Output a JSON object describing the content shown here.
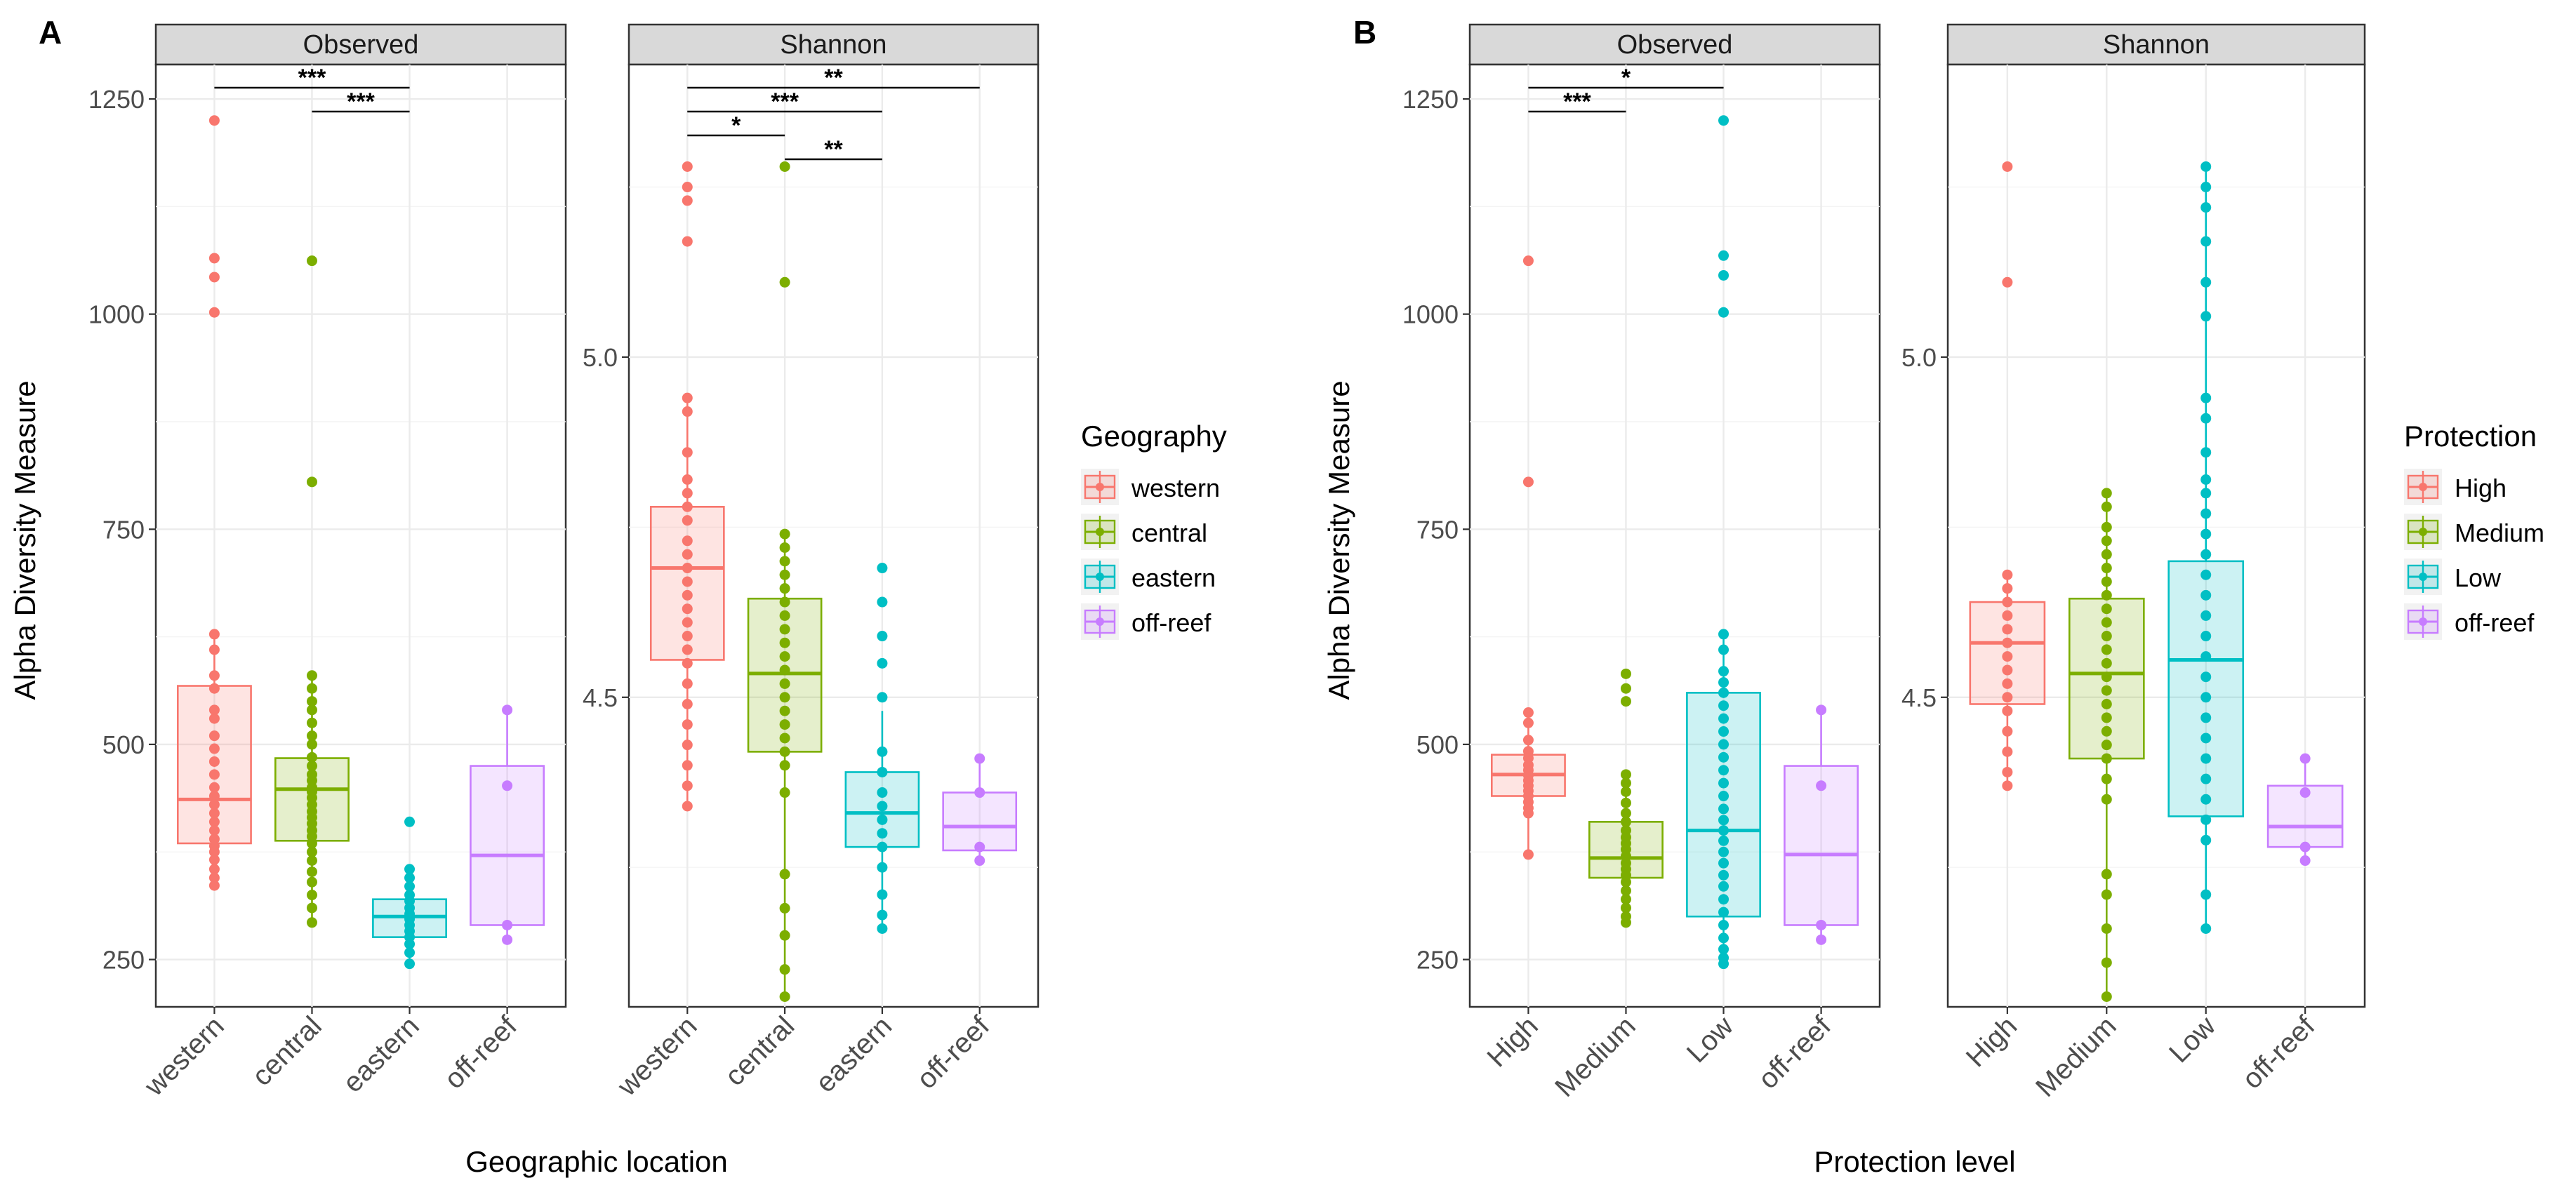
{
  "chart_data": [
    {
      "type": "box",
      "panel_label": "A",
      "xlabel": "Geographic location",
      "ylabel": "Alpha Diversity Measure",
      "legend": {
        "title": "Geography",
        "entries": [
          "western",
          "central",
          "eastern",
          "off-reef"
        ],
        "position": "right"
      },
      "colors": [
        "#f8766d",
        "#7cae00",
        "#00bfc4",
        "#c77cff"
      ],
      "categories": [
        "western",
        "central",
        "eastern",
        "off-reef"
      ],
      "facets": [
        {
          "strip": "Observed",
          "ylim": [
            195,
            1290
          ],
          "yticks": [
            250,
            500,
            750,
            1000,
            1250
          ],
          "ytick_labels": [
            "250",
            "500",
            "750",
            "1000",
            "1250"
          ],
          "boxes": [
            {
              "q1": 385,
              "median": 436,
              "q3": 568,
              "whisker_low": 336,
              "whisker_high": 628
            },
            {
              "q1": 388,
              "median": 448,
              "q3": 484,
              "whisker_low": 293,
              "whisker_high": 580
            },
            {
              "q1": 276,
              "median": 300,
              "q3": 320,
              "whisker_low": 245,
              "whisker_high": 355
            },
            {
              "q1": 290,
              "median": 371,
              "q3": 475,
              "whisker_low": 273,
              "whisker_high": 540
            }
          ],
          "points": [
            [
              1225,
              1065,
              1043,
              1002,
              628,
              610,
              580,
              565,
              540,
              530,
              510,
              495,
              480,
              465,
              450,
              440,
              430,
              420,
              410,
              400,
              390,
              382,
              375,
              366,
              355,
              345,
              336
            ],
            [
              1062,
              805,
              580,
              565,
              550,
              540,
              525,
              510,
              500,
              485,
              475,
              465,
              458,
              450,
              445,
              438,
              430,
              422,
              415,
              408,
              400,
              393,
              385,
              375,
              365,
              352,
              340,
              325,
              310,
              293
            ],
            [
              410,
              355,
              345,
              335,
              325,
              318,
              310,
              303,
              297,
              290,
              283,
              276,
              268,
              258,
              245
            ],
            [
              540,
              452,
              290,
              273
            ]
          ],
          "significance": [
            {
              "from": "western",
              "to": "eastern",
              "label": "***"
            },
            {
              "from": "central",
              "to": "eastern",
              "label": "***"
            }
          ]
        },
        {
          "strip": "Shannon",
          "ylim": [
            4.045,
            5.43
          ],
          "yticks": [
            4.5,
            5.0
          ],
          "ytick_labels": [
            "4.5",
            "5.0"
          ],
          "boxes": [
            {
              "q1": 4.555,
              "median": 4.69,
              "q3": 4.78,
              "whisker_low": 4.34,
              "whisker_high": 4.94
            },
            {
              "q1": 4.42,
              "median": 4.535,
              "q3": 4.645,
              "whisker_low": 4.06,
              "whisker_high": 4.74
            },
            {
              "q1": 4.28,
              "median": 4.33,
              "q3": 4.39,
              "whisker_low": 4.16,
              "whisker_high": 4.48
            },
            {
              "q1": 4.275,
              "median": 4.31,
              "q3": 4.36,
              "whisker_low": 4.26,
              "whisker_high": 4.41
            }
          ],
          "points": [
            [
              5.28,
              5.25,
              5.23,
              5.17,
              4.94,
              4.92,
              4.86,
              4.82,
              4.8,
              4.78,
              4.76,
              4.73,
              4.71,
              4.69,
              4.67,
              4.65,
              4.63,
              4.61,
              4.59,
              4.57,
              4.55,
              4.52,
              4.49,
              4.46,
              4.43,
              4.4,
              4.37,
              4.34
            ],
            [
              5.28,
              5.11,
              4.74,
              4.72,
              4.7,
              4.68,
              4.66,
              4.64,
              4.62,
              4.6,
              4.58,
              4.56,
              4.54,
              4.52,
              4.5,
              4.48,
              4.46,
              4.44,
              4.42,
              4.4,
              4.36,
              4.24,
              4.19,
              4.15,
              4.1,
              4.06
            ],
            [
              4.69,
              4.64,
              4.59,
              4.55,
              4.5,
              4.42,
              4.39,
              4.36,
              4.34,
              4.32,
              4.3,
              4.28,
              4.25,
              4.21,
              4.18,
              4.16
            ],
            [
              4.41,
              4.36,
              4.28,
              4.26
            ]
          ],
          "significance": [
            {
              "from": "western",
              "to": "off-reef",
              "label": "**"
            },
            {
              "from": "western",
              "to": "eastern",
              "label": "***"
            },
            {
              "from": "western",
              "to": "central",
              "label": "*"
            },
            {
              "from": "central",
              "to": "eastern",
              "label": "**"
            }
          ]
        }
      ]
    },
    {
      "type": "box",
      "panel_label": "B",
      "xlabel": "Protection level",
      "ylabel": "Alpha Diversity Measure",
      "legend": {
        "title": "Protection",
        "entries": [
          "High",
          "Medium",
          "Low",
          "off-reef"
        ],
        "position": "right"
      },
      "colors": [
        "#f8766d",
        "#7cae00",
        "#00bfc4",
        "#c77cff"
      ],
      "categories": [
        "High",
        "Medium",
        "Low",
        "off-reef"
      ],
      "facets": [
        {
          "strip": "Observed",
          "ylim": [
            195,
            1290
          ],
          "yticks": [
            250,
            500,
            750,
            1000,
            1250
          ],
          "ytick_labels": [
            "250",
            "500",
            "750",
            "1000",
            "1250"
          ],
          "boxes": [
            {
              "q1": 440,
              "median": 465,
              "q3": 488,
              "whisker_low": 372,
              "whisker_high": 537
            },
            {
              "q1": 345,
              "median": 368,
              "q3": 410,
              "whisker_low": 293,
              "whisker_high": 465
            },
            {
              "q1": 300,
              "median": 400,
              "q3": 560,
              "whisker_low": 245,
              "whisker_high": 628
            },
            {
              "q1": 290,
              "median": 372,
              "q3": 475,
              "whisker_low": 273,
              "whisker_high": 540
            }
          ],
          "points": [
            [
              1062,
              805,
              537,
              525,
              505,
              492,
              484,
              476,
              470,
              464,
              458,
              452,
              446,
              440,
              433,
              426,
              420,
              372
            ],
            [
              582,
              565,
              550,
              465,
              455,
              445,
              432,
              420,
              410,
              400,
              392,
              385,
              378,
              370,
              362,
              355,
              348,
              340,
              330,
              320,
              310,
              300,
              293
            ],
            [
              1225,
              1068,
              1045,
              1002,
              628,
              610,
              585,
              572,
              560,
              545,
              530,
              515,
              500,
              485,
              470,
              455,
              440,
              425,
              412,
              400,
              388,
              375,
              362,
              348,
              335,
              320,
              305,
              290,
              275,
              262,
              252,
              245
            ],
            [
              540,
              452,
              290,
              273
            ]
          ],
          "significance": [
            {
              "from": "High",
              "to": "Low",
              "label": "*"
            },
            {
              "from": "High",
              "to": "Medium",
              "label": "***"
            }
          ]
        },
        {
          "strip": "Shannon",
          "ylim": [
            4.045,
            5.43
          ],
          "yticks": [
            4.5,
            5.0
          ],
          "ytick_labels": [
            "4.5",
            "5.0"
          ],
          "boxes": [
            {
              "q1": 4.49,
              "median": 4.58,
              "q3": 4.64,
              "whisker_low": 4.37,
              "whisker_high": 4.68
            },
            {
              "q1": 4.41,
              "median": 4.535,
              "q3": 4.645,
              "whisker_low": 4.06,
              "whisker_high": 4.8
            },
            {
              "q1": 4.325,
              "median": 4.555,
              "q3": 4.7,
              "whisker_low": 4.16,
              "whisker_high": 5.28
            },
            {
              "q1": 4.28,
              "median": 4.31,
              "q3": 4.37,
              "whisker_low": 4.26,
              "whisker_high": 4.41
            }
          ],
          "points": [
            [
              5.28,
              5.11,
              4.68,
              4.66,
              4.64,
              4.62,
              4.6,
              4.58,
              4.56,
              4.54,
              4.52,
              4.5,
              4.48,
              4.45,
              4.42,
              4.39,
              4.37
            ],
            [
              4.8,
              4.78,
              4.75,
              4.73,
              4.71,
              4.69,
              4.67,
              4.65,
              4.63,
              4.61,
              4.59,
              4.57,
              4.55,
              4.53,
              4.51,
              4.49,
              4.47,
              4.45,
              4.43,
              4.41,
              4.38,
              4.35,
              4.24,
              4.21,
              4.16,
              4.11,
              4.06
            ],
            [
              5.28,
              5.25,
              5.22,
              5.17,
              5.11,
              5.06,
              4.94,
              4.91,
              4.86,
              4.82,
              4.8,
              4.77,
              4.74,
              4.71,
              4.68,
              4.65,
              4.62,
              4.59,
              4.56,
              4.53,
              4.5,
              4.47,
              4.44,
              4.41,
              4.38,
              4.35,
              4.32,
              4.29,
              4.21,
              4.16
            ],
            [
              4.41,
              4.36,
              4.28,
              4.26
            ]
          ],
          "significance": []
        }
      ]
    }
  ]
}
